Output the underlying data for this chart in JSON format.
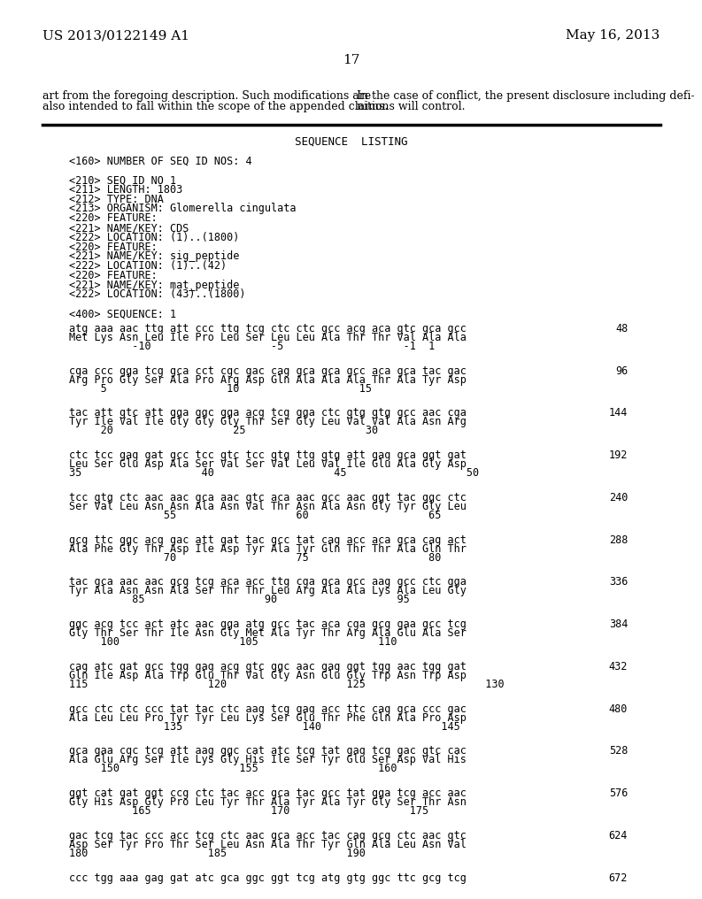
{
  "header_left": "US 2013/0122149 A1",
  "header_right": "May 16, 2013",
  "page_number": "17",
  "bg_color": "#ffffff",
  "text_color": "#000000",
  "body_text_left": "art from the foregoing description. Such modifications are\nalso intended to fall within the scope of the appended claims.",
  "body_text_right": "In the case of conflict, the present disclosure including defi-\nnitions will control.",
  "seq_listing_title": "SEQUENCE  LISTING",
  "metadata_lines": [
    "<160> NUMBER OF SEQ ID NOS: 4",
    "",
    "<210> SEQ ID NO 1",
    "<211> LENGTH: 1803",
    "<212> TYPE: DNA",
    "<213> ORGANISM: Glomerella cingulata",
    "<220> FEATURE:",
    "<221> NAME/KEY: CDS",
    "<222> LOCATION: (1)..(1800)",
    "<220> FEATURE:",
    "<221> NAME/KEY: sig_peptide",
    "<222> LOCATION: (1)..(42)",
    "<220> FEATURE:",
    "<221> NAME/KEY: mat_peptide",
    "<222> LOCATION: (43)..(1800)",
    "",
    "<400> SEQUENCE: 1"
  ],
  "sequence_blocks": [
    {
      "dna": "atg aaa aac ttg att ccc ttg tcg ctc ctc gcc acg aca gtc gca gcc",
      "aa": "Met Lys Asn Leu Ile Pro Leu Ser Leu Leu Ala Thr Thr Val Ala Ala",
      "nums": "          -10                   -5                   -1  1",
      "num_right": "48"
    },
    {
      "dna": "cga ccc gga tcg gca cct cgc gac cag gca gca gcc aca gca tac gac",
      "aa": "Arg Pro Gly Ser Ala Pro Arg Asp Gln Ala Ala Ala Thr Ala Tyr Asp",
      "nums": "     5                   10                   15",
      "num_right": "96"
    },
    {
      "dna": "tac att gtc att gga ggc gga acg tcg gga ctc gtg gtg gcc aac cga",
      "aa": "Tyr Ile Val Ile Gly Gly Gly Thr Ser Gly Leu Val Val Ala Asn Arg",
      "nums": "     20                   25                   30",
      "num_right": "144"
    },
    {
      "dna": "ctc tcc gag gat gcc tcc gtc tcc gtg ttg gtg att gag gca ggt gat",
      "aa": "Leu Ser Glu Asp Ala Ser Val Ser Val Leu Val Ile Glu Ala Gly Asp",
      "nums": "35                   40                   45                   50",
      "num_right": "192"
    },
    {
      "dna": "tcc gtg ctc aac aac gca aac gtc aca aac gcc aac ggt tac ggc ctc",
      "aa": "Ser Val Leu Asn Asn Ala Asn Val Thr Asn Ala Asn Gly Tyr Gly Leu",
      "nums": "               55                   60                   65",
      "num_right": "240"
    },
    {
      "dna": "gcg ttc ggc acg gac att gat tac gcc tat cag acc aca gca cag act",
      "aa": "Ala Phe Gly Thr Asp Ile Asp Tyr Ala Tyr Gln Thr Thr Ala Gln Thr",
      "nums": "               70                   75                   80",
      "num_right": "288"
    },
    {
      "dna": "tac gca aac aac gcg tcg aca acc ttg cga gca gcc aag gcc ctc gga",
      "aa": "Tyr Ala Asn Asn Ala Ser Thr Thr Leu Arg Ala Ala Lys Ala Leu Gly",
      "nums": "          85                   90                   95",
      "num_right": "336"
    },
    {
      "dna": "ggc acg tcc act atc aac gga atg gcc tac aca cga gcg gaa gcc tcg",
      "aa": "Gly Thr Ser Thr Ile Asn Gly Met Ala Tyr Thr Arg Ala Glu Ala Ser",
      "nums": "     100                   105                   110",
      "num_right": "384"
    },
    {
      "dna": "cag atc gat gcc tgg gag acg gtc ggc aac gag ggt tgg aac tgg gat",
      "aa": "Gln Ile Asp Ala Trp Glu Thr Val Gly Asn Glu Gly Trp Asn Trp Asp",
      "nums": "115                   120                   125                   130",
      "num_right": "432"
    },
    {
      "dna": "gcc ctc ctc ccc tat tac ctc aag tcg gag acc ttc cag gca ccc gac",
      "aa": "Ala Leu Leu Pro Tyr Tyr Leu Lys Ser Glu Thr Phe Gln Ala Pro Asp",
      "nums": "               135                   140                   145",
      "num_right": "480"
    },
    {
      "dna": "gca gaa cgc tcg att aag ggc cat atc tcg tat gag tcg gac gtc cac",
      "aa": "Ala Glu Arg Ser Ile Lys Gly His Ile Ser Tyr Glu Ser Asp Val His",
      "nums": "     150                   155                   160",
      "num_right": "528"
    },
    {
      "dna": "ggt cat gat ggt ccg ctc tac acc gca tac gcc tat gga tcg acc aac",
      "aa": "Gly His Asp Gly Pro Leu Tyr Thr Ala Tyr Ala Tyr Gly Ser Thr Asn",
      "nums": "          165                   170                   175",
      "num_right": "576"
    },
    {
      "dna": "gac tcg tac ccc acc tcg ctc aac gca acc tac cag gcg ctc aac gtc",
      "aa": "Asp Ser Tyr Pro Thr Ser Leu Asn Ala Thr Tyr Gln Ala Leu Asn Val",
      "nums": "180                   185                   190",
      "num_right": "624"
    },
    {
      "dna": "ccc tgg aaa gag gat atc gca ggc ggt tcg atg gtg ggc ttc gcg tcg",
      "aa": "",
      "nums": "",
      "num_right": "672"
    }
  ]
}
